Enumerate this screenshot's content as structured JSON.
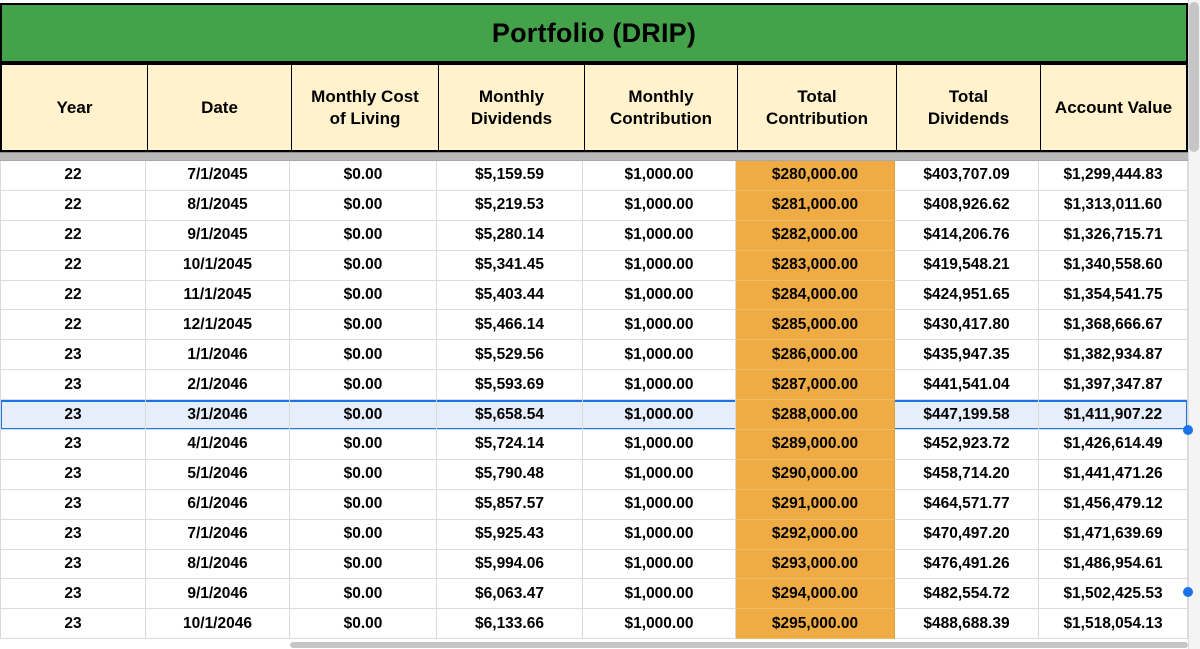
{
  "title": "Portfolio (DRIP)",
  "table": {
    "columns": [
      "Year",
      "Date",
      "Monthly Cost of Living",
      "Monthly Dividends",
      "Monthly Contribution",
      "Total Contribution",
      "Total Dividends",
      "Account Value"
    ],
    "rows": [
      [
        "22",
        "7/1/2045",
        "$0.00",
        "$5,159.59",
        "$1,000.00",
        "$280,000.00",
        "$403,707.09",
        "$1,299,444.83"
      ],
      [
        "22",
        "8/1/2045",
        "$0.00",
        "$5,219.53",
        "$1,000.00",
        "$281,000.00",
        "$408,926.62",
        "$1,313,011.60"
      ],
      [
        "22",
        "9/1/2045",
        "$0.00",
        "$5,280.14",
        "$1,000.00",
        "$282,000.00",
        "$414,206.76",
        "$1,326,715.71"
      ],
      [
        "22",
        "10/1/2045",
        "$0.00",
        "$5,341.45",
        "$1,000.00",
        "$283,000.00",
        "$419,548.21",
        "$1,340,558.60"
      ],
      [
        "22",
        "11/1/2045",
        "$0.00",
        "$5,403.44",
        "$1,000.00",
        "$284,000.00",
        "$424,951.65",
        "$1,354,541.75"
      ],
      [
        "22",
        "12/1/2045",
        "$0.00",
        "$5,466.14",
        "$1,000.00",
        "$285,000.00",
        "$430,417.80",
        "$1,368,666.67"
      ],
      [
        "23",
        "1/1/2046",
        "$0.00",
        "$5,529.56",
        "$1,000.00",
        "$286,000.00",
        "$435,947.35",
        "$1,382,934.87"
      ],
      [
        "23",
        "2/1/2046",
        "$0.00",
        "$5,593.69",
        "$1,000.00",
        "$287,000.00",
        "$441,541.04",
        "$1,397,347.87"
      ],
      [
        "23",
        "3/1/2046",
        "$0.00",
        "$5,658.54",
        "$1,000.00",
        "$288,000.00",
        "$447,199.58",
        "$1,411,907.22"
      ],
      [
        "23",
        "4/1/2046",
        "$0.00",
        "$5,724.14",
        "$1,000.00",
        "$289,000.00",
        "$452,923.72",
        "$1,426,614.49"
      ],
      [
        "23",
        "5/1/2046",
        "$0.00",
        "$5,790.48",
        "$1,000.00",
        "$290,000.00",
        "$458,714.20",
        "$1,441,471.26"
      ],
      [
        "23",
        "6/1/2046",
        "$0.00",
        "$5,857.57",
        "$1,000.00",
        "$291,000.00",
        "$464,571.77",
        "$1,456,479.12"
      ],
      [
        "23",
        "7/1/2046",
        "$0.00",
        "$5,925.43",
        "$1,000.00",
        "$292,000.00",
        "$470,497.20",
        "$1,471,639.69"
      ],
      [
        "23",
        "8/1/2046",
        "$0.00",
        "$5,994.06",
        "$1,000.00",
        "$293,000.00",
        "$476,491.26",
        "$1,486,954.61"
      ],
      [
        "23",
        "9/1/2046",
        "$0.00",
        "$6,063.47",
        "$1,000.00",
        "$294,000.00",
        "$482,554.72",
        "$1,502,425.53"
      ],
      [
        "23",
        "10/1/2046",
        "$0.00",
        "$6,133.66",
        "$1,000.00",
        "$295,000.00",
        "$488,688.39",
        "$1,518,054.13"
      ]
    ],
    "highlight_column_index": 5,
    "selected_row_index": 8,
    "selected_row_date": "3/1/2046"
  },
  "colors": {
    "title_bg": "#44a24a",
    "header_bg": "#fff2cc",
    "highlight_bg": "#f0ac44",
    "selected_bg": "#e6eefc",
    "selection_border": "#1a73e8"
  }
}
